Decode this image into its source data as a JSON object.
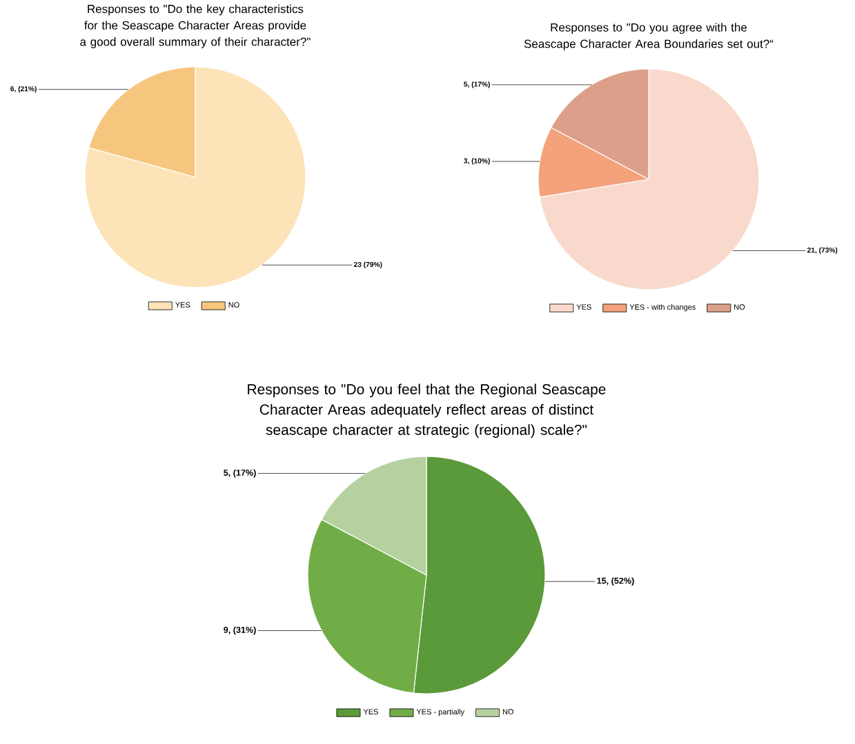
{
  "chart_data": [
    {
      "type": "pie",
      "title": "Responses to \"Do the key characteristics for the Seascape Character Areas provide a good overall summary of their character?\"",
      "categories": [
        "YES",
        "NO"
      ],
      "values": [
        23,
        6
      ],
      "colors": [
        "#fde3b8",
        "#f6c67e"
      ],
      "value_labels": [
        "23 (79%)",
        "6, (21%)"
      ],
      "legend": "bottom"
    },
    {
      "type": "pie",
      "title": "Responses to \"Do you agree with the Seascape Character Area Boundaries set out?“",
      "categories": [
        "YES",
        "YES - with changes",
        "NO"
      ],
      "values": [
        21,
        3,
        5
      ],
      "colors": [
        "#f8d9cc",
        "#f4a27c",
        "#dca08a"
      ],
      "value_labels": [
        "21, (73%)",
        "3, (10%)",
        "5, (17%)"
      ],
      "legend": "bottom"
    },
    {
      "type": "pie",
      "title": "Responses to \"Do you feel that the Regional Seascape Character Areas adequately reflect areas of distinct seascape character at strategic (regional) scale?\"",
      "categories": [
        "YES",
        "YES - partially",
        "NO"
      ],
      "values": [
        15,
        9,
        5
      ],
      "colors": [
        "#5b9a3a",
        "#70ad47",
        "#b5d1a0"
      ],
      "value_labels": [
        "15, (52%)",
        "9, (31%)",
        "5, (17%)"
      ],
      "legend": "bottom"
    }
  ]
}
